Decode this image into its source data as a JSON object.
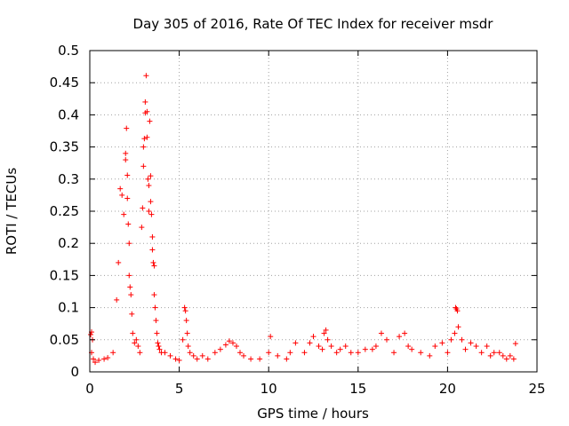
{
  "colors": {
    "series": "#ff0000",
    "grid": "#a0a0a0",
    "axis": "#000000"
  },
  "chart_data": {
    "type": "scatter",
    "title": "Day 305 of 2016, Rate Of TEC Index for receiver msdr",
    "xlabel": "GPS time / hours",
    "ylabel": "ROTI / TECUs",
    "xlim": [
      0,
      25
    ],
    "ylim": [
      0,
      0.5
    ],
    "xticks": [
      0,
      5,
      10,
      15,
      20,
      25
    ],
    "yticks": [
      0,
      0.05,
      0.1,
      0.15,
      0.2,
      0.25,
      0.3,
      0.35,
      0.4,
      0.45,
      0.5
    ],
    "xtick_labels": [
      "0",
      "5",
      "10",
      "15",
      "20",
      "25"
    ],
    "ytick_labels": [
      "0",
      "0.05",
      "0.1",
      "0.15",
      "0.2",
      "0.25",
      "0.3",
      "0.35",
      "0.4",
      "0.45",
      "0.5"
    ],
    "grid": true,
    "marker": "plus",
    "series": [
      {
        "name": "ROTI",
        "x": [
          0.05,
          0.1,
          0.15,
          0.1,
          0.2,
          0.3,
          0.5,
          0.8,
          1.0,
          1.3,
          1.5,
          1.6,
          1.7,
          1.8,
          1.9,
          2.0,
          2.0,
          2.05,
          2.1,
          2.1,
          2.15,
          2.2,
          2.2,
          2.25,
          2.3,
          2.35,
          2.4,
          2.5,
          2.6,
          2.7,
          2.8,
          2.9,
          2.95,
          3.0,
          3.0,
          3.05,
          3.1,
          3.1,
          3.15,
          3.2,
          3.2,
          3.25,
          3.3,
          3.3,
          3.35,
          3.4,
          3.4,
          3.45,
          3.5,
          3.5,
          3.55,
          3.6,
          3.6,
          3.65,
          3.7,
          3.75,
          3.8,
          3.85,
          3.9,
          4.0,
          4.2,
          4.5,
          4.8,
          5.0,
          5.2,
          5.3,
          5.35,
          5.4,
          5.45,
          5.5,
          5.6,
          5.8,
          6.0,
          6.3,
          6.6,
          7.0,
          7.3,
          7.6,
          7.8,
          8.0,
          8.2,
          8.4,
          8.6,
          9.0,
          9.5,
          10.0,
          10.1,
          10.5,
          11.0,
          11.2,
          11.5,
          12.0,
          12.3,
          12.5,
          12.8,
          13.0,
          13.1,
          13.2,
          13.3,
          13.5,
          13.8,
          14.0,
          14.3,
          14.6,
          15.0,
          15.4,
          15.8,
          16.0,
          16.3,
          16.6,
          17.0,
          17.3,
          17.6,
          17.8,
          18.0,
          18.5,
          19.0,
          19.3,
          19.7,
          20.0,
          20.2,
          20.4,
          20.45,
          20.5,
          20.55,
          20.6,
          20.8,
          21.0,
          21.3,
          21.6,
          21.9,
          22.2,
          22.4,
          22.6,
          22.9,
          23.1,
          23.3,
          23.5,
          23.7,
          23.8
        ],
        "y": [
          0.058,
          0.062,
          0.05,
          0.03,
          0.02,
          0.015,
          0.018,
          0.02,
          0.022,
          0.03,
          0.112,
          0.17,
          0.285,
          0.275,
          0.245,
          0.34,
          0.33,
          0.379,
          0.306,
          0.27,
          0.23,
          0.2,
          0.15,
          0.132,
          0.12,
          0.09,
          0.06,
          0.045,
          0.05,
          0.04,
          0.03,
          0.225,
          0.255,
          0.32,
          0.35,
          0.363,
          0.403,
          0.42,
          0.461,
          0.405,
          0.365,
          0.3,
          0.29,
          0.25,
          0.39,
          0.305,
          0.265,
          0.245,
          0.21,
          0.19,
          0.17,
          0.165,
          0.12,
          0.1,
          0.08,
          0.06,
          0.045,
          0.04,
          0.035,
          0.03,
          0.03,
          0.025,
          0.02,
          0.018,
          0.05,
          0.1,
          0.095,
          0.08,
          0.06,
          0.04,
          0.03,
          0.025,
          0.02,
          0.025,
          0.02,
          0.03,
          0.035,
          0.042,
          0.048,
          0.045,
          0.04,
          0.03,
          0.025,
          0.02,
          0.02,
          0.03,
          0.055,
          0.025,
          0.02,
          0.03,
          0.045,
          0.03,
          0.045,
          0.055,
          0.04,
          0.035,
          0.06,
          0.065,
          0.05,
          0.04,
          0.03,
          0.035,
          0.04,
          0.03,
          0.03,
          0.035,
          0.035,
          0.04,
          0.06,
          0.05,
          0.03,
          0.055,
          0.06,
          0.04,
          0.035,
          0.03,
          0.025,
          0.04,
          0.045,
          0.03,
          0.05,
          0.06,
          0.1,
          0.098,
          0.095,
          0.07,
          0.05,
          0.035,
          0.045,
          0.04,
          0.03,
          0.04,
          0.025,
          0.03,
          0.03,
          0.025,
          0.02,
          0.025,
          0.02,
          0.044
        ]
      }
    ]
  }
}
